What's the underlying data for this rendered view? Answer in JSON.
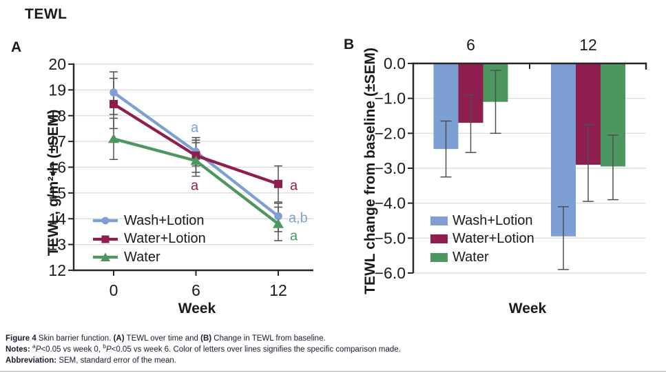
{
  "title": "TEWL",
  "colors": {
    "wash_lotion": "#7d9fd3",
    "water_lotion": "#8e1e4e",
    "water": "#4e9660",
    "error_bar": "#4f4f4f",
    "gridline": "#d8d8d8",
    "axis": "#262626",
    "tick_text": "#1a1a1a",
    "caption_text": "#1a1a2e"
  },
  "chart_data": [
    {
      "panel_label": "A",
      "type": "line",
      "xlabel": "Week",
      "ylabel": "TEWL, g/m²•h (±SEM)",
      "x": [
        0,
        6,
        12
      ],
      "xtick_labels": [
        "0",
        "6",
        "12"
      ],
      "ylim": [
        12,
        20
      ],
      "yticks": [
        20,
        19,
        18,
        17,
        16,
        15,
        14,
        13,
        12
      ],
      "grid": true,
      "legend_position": "lower-left",
      "series": [
        {
          "name": "Wash+Lotion",
          "marker": "circle",
          "color_key": "wash_lotion",
          "values": [
            18.9,
            16.6,
            14.1
          ],
          "err_low": [
            18.05,
            16.05,
            13.5
          ],
          "err_high": [
            19.7,
            17.15,
            14.6
          ]
        },
        {
          "name": "Water+Lotion",
          "marker": "square",
          "color_key": "water_lotion",
          "values": [
            18.45,
            16.45,
            15.35
          ],
          "err_low": [
            17.5,
            15.8,
            14.65
          ],
          "err_high": [
            19.45,
            17.05,
            16.05
          ]
        },
        {
          "name": "Water",
          "marker": "triangle",
          "color_key": "water",
          "values": [
            17.1,
            16.25,
            13.8
          ],
          "err_low": [
            16.3,
            15.65,
            13.15
          ],
          "err_high": [
            17.9,
            16.95,
            14.45
          ]
        }
      ],
      "annotations": [
        {
          "text": "a",
          "color_key": "wash_lotion",
          "week": 6,
          "value": 17.55,
          "anchor": "middle",
          "dx": -2
        },
        {
          "text": "a",
          "color_key": "water_lotion",
          "week": 6,
          "value": 15.3,
          "anchor": "middle",
          "dx": -2
        },
        {
          "text": "a",
          "color_key": "water_lotion",
          "week": 12,
          "value": 15.3,
          "anchor": "start",
          "dx": 17
        },
        {
          "text": "a,b",
          "color_key": "wash_lotion",
          "week": 12,
          "value": 14.05,
          "anchor": "start",
          "dx": 15
        },
        {
          "text": "a",
          "color_key": "water",
          "week": 12,
          "value": 13.35,
          "anchor": "start",
          "dx": 17
        }
      ]
    },
    {
      "panel_label": "B",
      "type": "bar",
      "xlabel": "Week",
      "ylabel": "TEWL change from baseline (±SEM)",
      "categories": [
        "6",
        "12"
      ],
      "ylim": [
        -6,
        0
      ],
      "yticks": [
        0,
        -1,
        -2,
        -3,
        -4,
        -5,
        -6
      ],
      "ytick_labels": [
        "0.0",
        "−1.0",
        "−2.0",
        "−3.0",
        "−4.0",
        "−5.0",
        "−6.0"
      ],
      "grid": true,
      "legend_position": "lower-left",
      "series": [
        {
          "name": "Wash+Lotion",
          "color_key": "wash_lotion",
          "values": [
            -2.45,
            -4.95
          ],
          "err_low": [
            -3.25,
            -5.9
          ],
          "err_high": [
            -1.65,
            -4.1
          ]
        },
        {
          "name": "Water+Lotion",
          "color_key": "water_lotion",
          "values": [
            -1.7,
            -2.9
          ],
          "err_low": [
            -2.55,
            -3.95
          ],
          "err_high": [
            -0.9,
            -1.75
          ]
        },
        {
          "name": "Water",
          "color_key": "water",
          "values": [
            -1.1,
            -2.95
          ],
          "err_low": [
            -2.0,
            -3.9
          ],
          "err_high": [
            -0.2,
            -2.05
          ]
        }
      ]
    }
  ],
  "caption": {
    "line1": {
      "label": "Figure 4",
      "s1": " Skin barrier function. ",
      "a": "(A)",
      "s2": " TEWL over time and ",
      "b": "(B)",
      "s3": " Change in TEWL from baseline."
    },
    "line2": {
      "label": "Notes: ",
      "sup_a": "a",
      "p1": "P",
      "t1": "<0.05 vs week 0, ",
      "sup_b": "b",
      "p2": "P",
      "t2": "<0.05 vs week 6. Color of letters over lines signifies the specific comparison made."
    },
    "line3": {
      "label": "Abbreviation:",
      "text": " SEM, standard error of the mean."
    }
  }
}
